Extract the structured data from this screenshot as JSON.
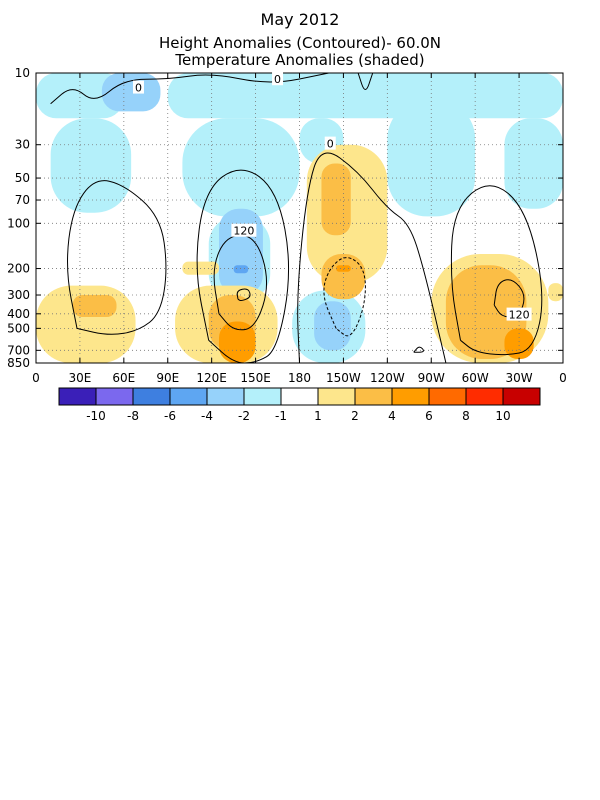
{
  "chart_data": {
    "type": "heatmap",
    "title": "May 2012",
    "subtitle_1": "Height Anomalies (Contoured)- 60.0N",
    "subtitle_2": "Temperature Anomalies (shaded)",
    "x_tick_labels": [
      "0",
      "30E",
      "60E",
      "90E",
      "120E",
      "150E",
      "180",
      "150W",
      "120W",
      "90W",
      "60W",
      "30W",
      "0"
    ],
    "x_range_deg_east": [
      0,
      360
    ],
    "y_tick_labels": [
      "10",
      "30",
      "50",
      "70",
      "100",
      "200",
      "300",
      "400",
      "500",
      "700",
      "850"
    ],
    "y_levels_hpa": [
      10,
      30,
      50,
      70,
      100,
      200,
      300,
      400,
      500,
      700,
      850
    ],
    "y_scale": "log pressure (inverted)",
    "grid": "dotted",
    "colorbar": {
      "labels": [
        "-10",
        "-8",
        "-6",
        "-4",
        "-2",
        "-1",
        "1",
        "2",
        "4",
        "6",
        "8",
        "10"
      ],
      "colors": [
        "#3a1fb8",
        "#7b68ee",
        "#3e7fe0",
        "#5ea6f2",
        "#96d2fa",
        "#b4f0fa",
        "#ffffff",
        "#fde68c",
        "#fbbe46",
        "#ff9d00",
        "#ff6a00",
        "#ff2c00",
        "#c80000"
      ]
    },
    "contour_labels": [
      "0",
      "0",
      "0",
      "120",
      "120"
    ],
    "shaded_regions": [
      {
        "anomaly": -1,
        "lon": [
          0,
          60
        ],
        "p": [
          10,
          20
        ]
      },
      {
        "anomaly": -1,
        "lon": [
          90,
          360
        ],
        "p": [
          10,
          20
        ]
      },
      {
        "anomaly": -2,
        "lon": [
          45,
          85
        ],
        "p": [
          10,
          18
        ]
      },
      {
        "anomaly": -2,
        "lon": [
          20,
          30
        ],
        "p": [
          27,
          33
        ]
      },
      {
        "anomaly": -1,
        "lon": [
          10,
          65
        ],
        "p": [
          20,
          85
        ]
      },
      {
        "anomaly": -1,
        "lon": [
          100,
          180
        ],
        "p": [
          20,
          90
        ]
      },
      {
        "anomaly": -1,
        "lon": [
          118,
          160
        ],
        "p": [
          90,
          330
        ]
      },
      {
        "anomaly": -2,
        "lon": [
          125,
          155
        ],
        "p": [
          80,
          300
        ]
      },
      {
        "anomaly": -4,
        "lon": [
          135,
          145
        ],
        "p": [
          190,
          215
        ]
      },
      {
        "anomaly": -1,
        "lon": [
          180,
          210
        ],
        "p": [
          20,
          40
        ]
      },
      {
        "anomaly": -1,
        "lon": [
          175,
          225
        ],
        "p": [
          280,
          850
        ]
      },
      {
        "anomaly": -2,
        "lon": [
          190,
          215
        ],
        "p": [
          330,
          700
        ]
      },
      {
        "anomaly": -1,
        "lon": [
          240,
          300
        ],
        "p": [
          15,
          90
        ]
      },
      {
        "anomaly": -1,
        "lon": [
          320,
          360
        ],
        "p": [
          20,
          80
        ]
      },
      {
        "anomaly": 1,
        "lon": [
          0,
          68
        ],
        "p": [
          260,
          850
        ]
      },
      {
        "anomaly": 2,
        "lon": [
          25,
          55
        ],
        "p": [
          300,
          420
        ]
      },
      {
        "anomaly": 1,
        "lon": [
          95,
          165
        ],
        "p": [
          260,
          850
        ]
      },
      {
        "anomaly": 2,
        "lon": [
          118,
          150
        ],
        "p": [
          300,
          700
        ]
      },
      {
        "anomaly": 4,
        "lon": [
          125,
          150
        ],
        "p": [
          450,
          850
        ]
      },
      {
        "anomaly": 1,
        "lon": [
          100,
          125
        ],
        "p": [
          180,
          220
        ]
      },
      {
        "anomaly": 1,
        "lon": [
          185,
          240
        ],
        "p": [
          30,
          250
        ]
      },
      {
        "anomaly": 2,
        "lon": [
          195,
          215
        ],
        "p": [
          40,
          120
        ]
      },
      {
        "anomaly": 2,
        "lon": [
          195,
          225
        ],
        "p": [
          160,
          320
        ]
      },
      {
        "anomaly": 4,
        "lon": [
          205,
          215
        ],
        "p": [
          190,
          210
        ]
      },
      {
        "anomaly": 1,
        "lon": [
          270,
          350
        ],
        "p": [
          160,
          850
        ]
      },
      {
        "anomaly": 2,
        "lon": [
          280,
          335
        ],
        "p": [
          190,
          800
        ]
      },
      {
        "anomaly": 4,
        "lon": [
          320,
          340
        ],
        "p": [
          500,
          800
        ]
      },
      {
        "anomaly": 1,
        "lon": [
          350,
          360
        ],
        "p": [
          250,
          330
        ]
      }
    ],
    "contours": [
      {
        "level": 0,
        "style": "solid",
        "lonlat": [
          [
            10,
            16
          ],
          [
            25,
            12
          ],
          [
            40,
            16
          ],
          [
            60,
            11
          ],
          [
            90,
            11
          ],
          [
            120,
            10
          ],
          [
            160,
            12
          ],
          [
            200,
            10
          ]
        ]
      },
      {
        "level": 0,
        "style": "solid",
        "lonlat": [
          [
            220,
            10
          ],
          [
            225,
            14
          ],
          [
            230,
            10
          ]
        ]
      },
      {
        "level": 60,
        "style": "solid",
        "lonlat": [
          [
            28,
            500
          ],
          [
            20,
            200
          ],
          [
            25,
            80
          ],
          [
            40,
            50
          ],
          [
            60,
            55
          ],
          [
            85,
            90
          ],
          [
            90,
            200
          ],
          [
            85,
            400
          ],
          [
            70,
            520
          ],
          [
            50,
            560
          ],
          [
            28,
            500
          ]
        ]
      },
      {
        "level": 60,
        "style": "solid",
        "lonlat": [
          [
            118,
            600
          ],
          [
            108,
            200
          ],
          [
            115,
            60
          ],
          [
            140,
            40
          ],
          [
            165,
            60
          ],
          [
            175,
            200
          ],
          [
            165,
            700
          ],
          [
            150,
            850
          ],
          [
            135,
            850
          ],
          [
            118,
            600
          ]
        ]
      },
      {
        "level": 120,
        "style": "solid",
        "lonlat": [
          [
            125,
            400
          ],
          [
            120,
            200
          ],
          [
            130,
            120
          ],
          [
            150,
            120
          ],
          [
            160,
            250
          ],
          [
            150,
            500
          ],
          [
            135,
            520
          ],
          [
            125,
            400
          ]
        ]
      },
      {
        "level": 120,
        "style": "solid",
        "lonlat": [
          [
            138,
            320
          ],
          [
            137,
            280
          ],
          [
            145,
            270
          ],
          [
            147,
            310
          ],
          [
            140,
            330
          ],
          [
            138,
            320
          ]
        ]
      },
      {
        "level": 0,
        "style": "solid",
        "lonlat": [
          [
            180,
            850
          ],
          [
            178,
            300
          ],
          [
            185,
            60
          ],
          [
            195,
            30
          ],
          [
            220,
            45
          ],
          [
            240,
            80
          ],
          [
            255,
            100
          ],
          [
            265,
            200
          ],
          [
            280,
            850
          ]
        ]
      },
      {
        "level": -60,
        "style": "dashed",
        "lonlat": [
          [
            205,
            500
          ],
          [
            195,
            300
          ],
          [
            200,
            200
          ],
          [
            212,
            160
          ],
          [
            225,
            200
          ],
          [
            225,
            350
          ],
          [
            215,
            600
          ],
          [
            205,
            500
          ]
        ]
      },
      {
        "level": 60,
        "style": "solid",
        "lonlat": [
          [
            290,
            600
          ],
          [
            283,
            250
          ],
          [
            285,
            80
          ],
          [
            310,
            50
          ],
          [
            335,
            80
          ],
          [
            348,
            300
          ],
          [
            340,
            700
          ],
          [
            320,
            760
          ],
          [
            300,
            720
          ],
          [
            290,
            600
          ]
        ]
      },
      {
        "level": 120,
        "style": "solid",
        "lonlat": [
          [
            313,
            350
          ],
          [
            315,
            250
          ],
          [
            325,
            230
          ],
          [
            335,
            300
          ],
          [
            330,
            420
          ],
          [
            318,
            420
          ],
          [
            313,
            350
          ]
        ]
      },
      {
        "level": 0,
        "style": "solid",
        "lonlat": [
          [
            258,
            720
          ],
          [
            262,
            650
          ],
          [
            266,
            720
          ],
          [
            258,
            720
          ]
        ]
      }
    ]
  }
}
